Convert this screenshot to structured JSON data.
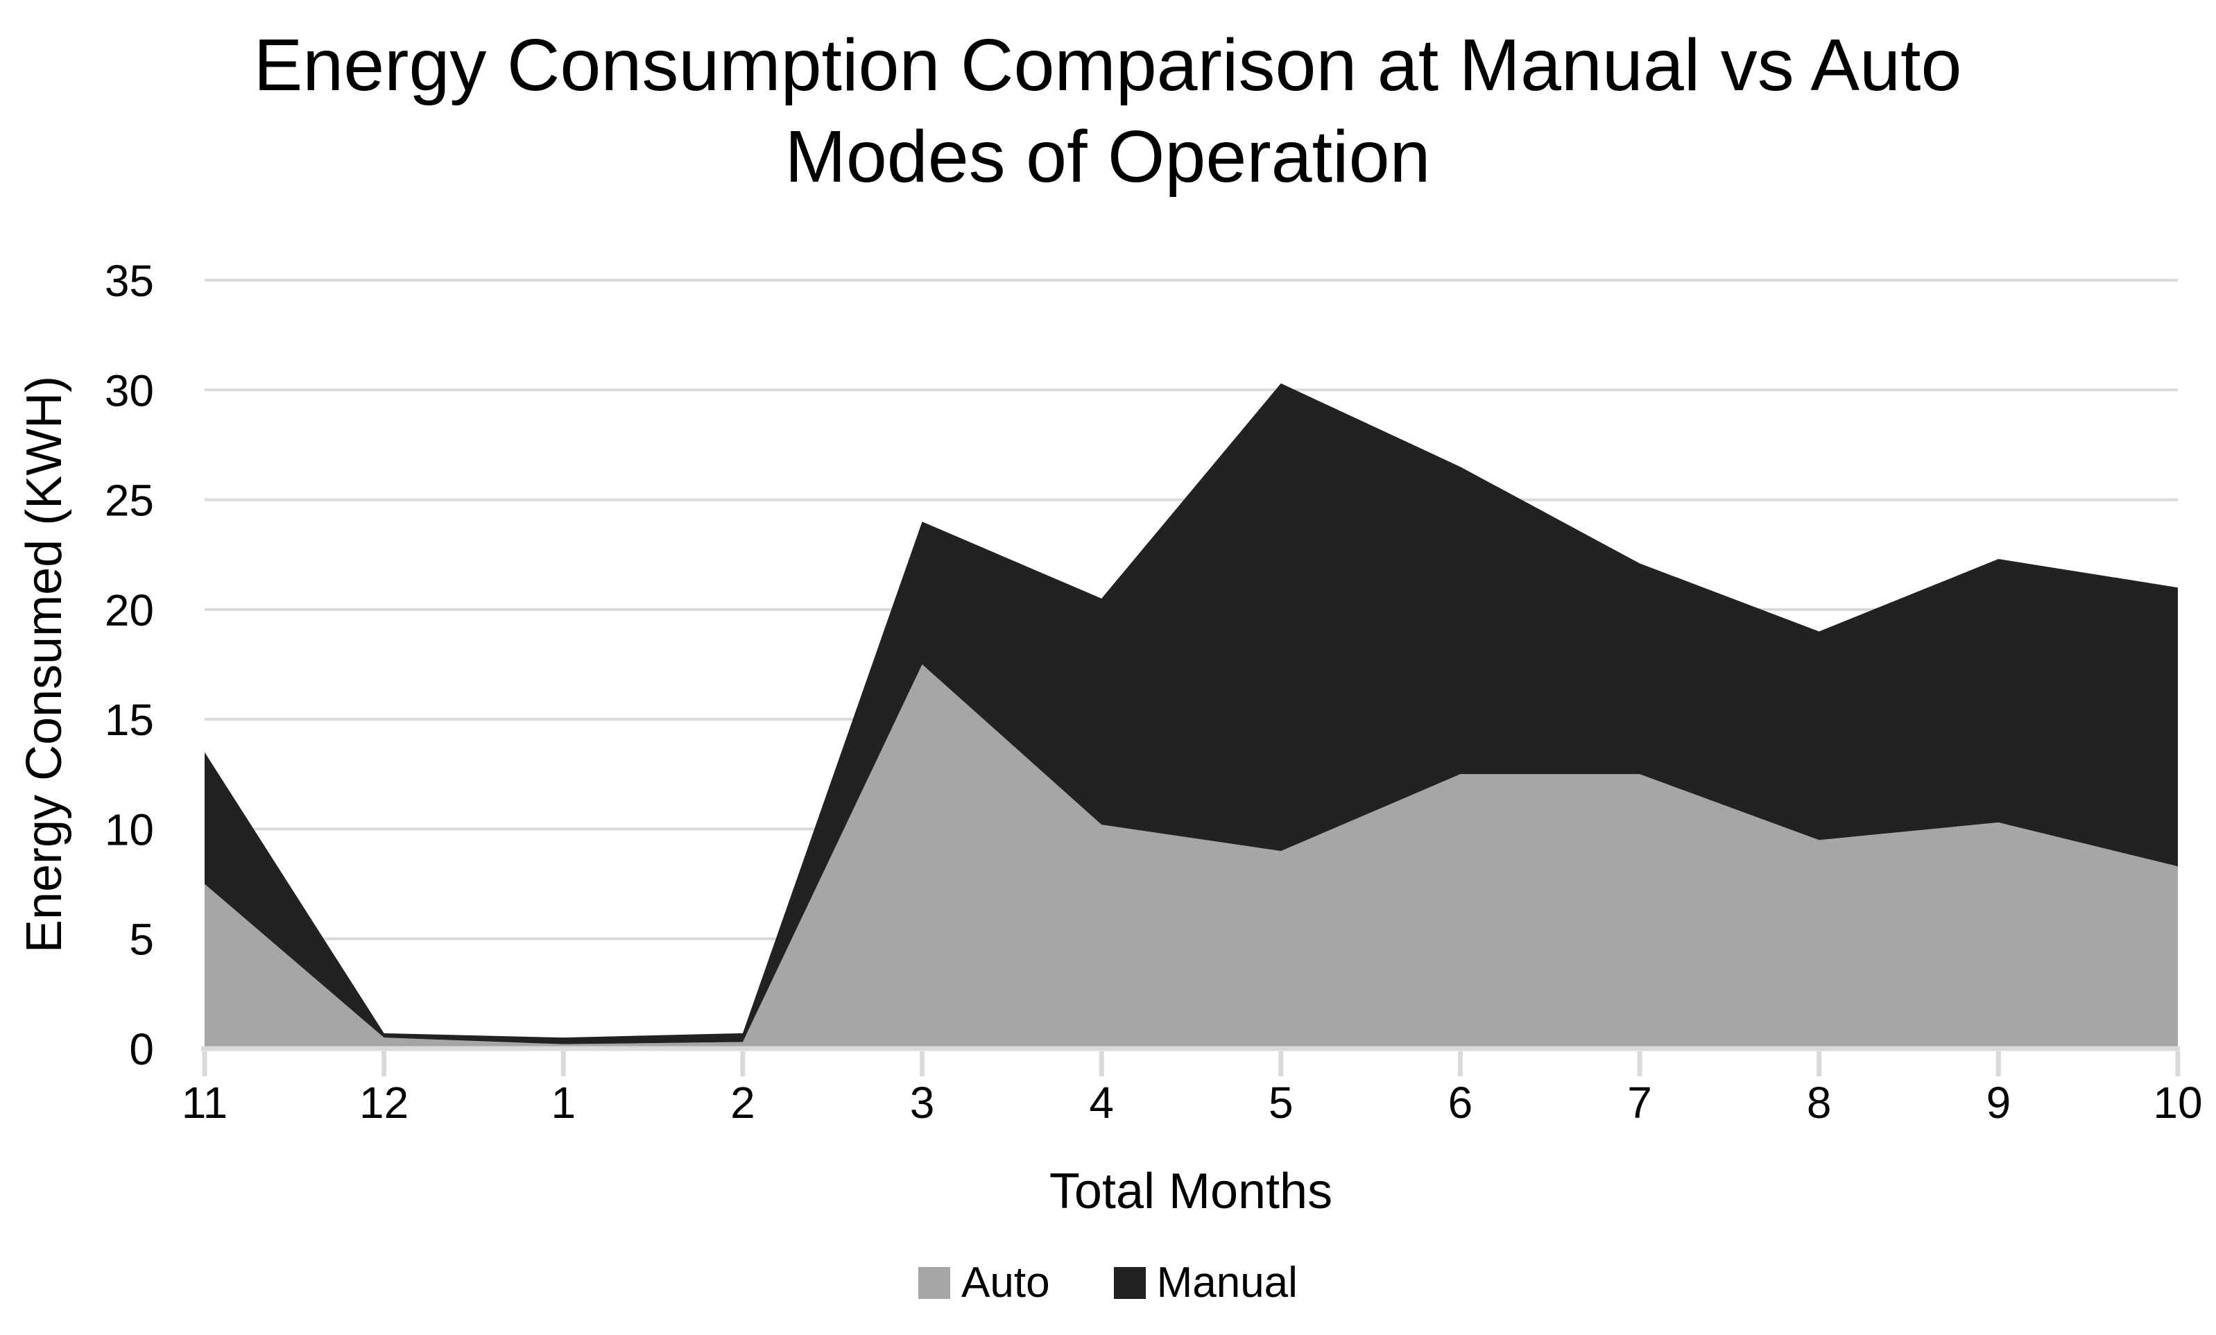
{
  "title": {
    "line1": "Energy Consumption Comparison at Manual vs Auto",
    "line2": "Modes of Operation"
  },
  "y_axis": {
    "title": "Energy Consumed (KWH)",
    "ticks": [
      0,
      5,
      10,
      15,
      20,
      25,
      30,
      35
    ]
  },
  "x_axis": {
    "title": "Total Months",
    "categories": [
      "11",
      "12",
      "1",
      "2",
      "3",
      "4",
      "5",
      "6",
      "7",
      "8",
      "9",
      "10"
    ]
  },
  "legend": {
    "items": [
      {
        "label": "Auto",
        "color": "#A6A6A6"
      },
      {
        "label": "Manual",
        "color": "#222222"
      }
    ]
  },
  "colors": {
    "grid": "#D9D9D9",
    "axis_line": "#D9D9D9",
    "tick_mark": "#D9D9D9",
    "text": "#000000",
    "background": "#FFFFFF"
  },
  "chart_data": {
    "type": "area",
    "stacked": true,
    "title": "Energy Consumption Comparison at Manual vs Auto Modes of Operation",
    "xlabel": "Total Months",
    "ylabel": "Energy Consumed (KWH)",
    "categories": [
      "11",
      "12",
      "1",
      "2",
      "3",
      "4",
      "5",
      "6",
      "7",
      "8",
      "9",
      "10"
    ],
    "series": [
      {
        "name": "Auto",
        "color": "#A6A6A6",
        "values": [
          7.5,
          0.5,
          0.2,
          0.3,
          17.5,
          10.2,
          9.0,
          12.5,
          12.5,
          9.5,
          10.3,
          8.3
        ]
      },
      {
        "name": "Manual",
        "color": "#222222",
        "values": [
          6.0,
          0.2,
          0.3,
          0.4,
          6.5,
          10.3,
          21.3,
          14.0,
          9.6,
          9.5,
          12.0,
          12.7
        ]
      }
    ],
    "stacked_totals": [
      13.5,
      0.7,
      0.5,
      0.7,
      24.0,
      20.5,
      30.3,
      26.5,
      22.1,
      19.0,
      22.3,
      21.0
    ],
    "ylim": [
      0,
      35
    ],
    "ytick_step": 5,
    "grid": true,
    "legend_position": "bottom"
  }
}
